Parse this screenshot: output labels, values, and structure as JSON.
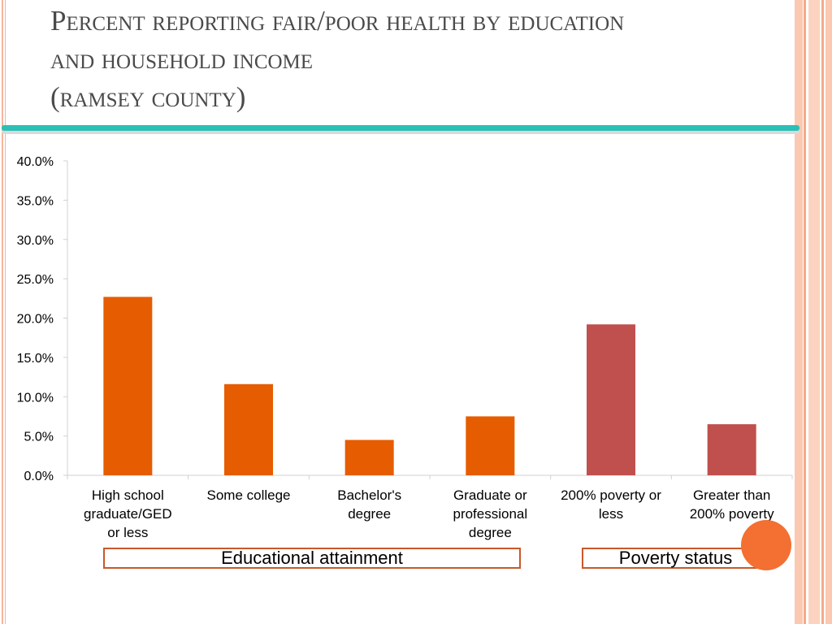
{
  "slide": {
    "title_lines": [
      "Percent reporting fair/poor health by education",
      "and household income",
      "(ramsey county)"
    ],
    "colors": {
      "education_bar": "#e65c00",
      "poverty_bar": "#c0504d",
      "accent_rule": "#2bbfb5",
      "accent_circle": "#f36f32",
      "group_box_border": "#c8582a"
    }
  },
  "groups": [
    {
      "label": "Educational attainment"
    },
    {
      "label": "Poverty status"
    }
  ],
  "chart_data": {
    "type": "bar",
    "ylim": [
      0,
      40
    ],
    "yticks": [
      "0.0%",
      "5.0%",
      "10.0%",
      "15.0%",
      "20.0%",
      "25.0%",
      "30.0%",
      "35.0%",
      "40.0%"
    ],
    "grid": false,
    "categories": [
      [
        "High school",
        "graduate/GED",
        "or less"
      ],
      [
        "Some college"
      ],
      [
        "Bachelor's",
        "degree"
      ],
      [
        "Graduate or",
        "professional",
        "degree"
      ],
      [
        "200% poverty or",
        "less"
      ],
      [
        "Greater than",
        "200% poverty"
      ]
    ],
    "values": [
      22.7,
      11.6,
      4.5,
      7.5,
      19.2,
      6.5
    ],
    "bar_groups": [
      "education",
      "education",
      "education",
      "education",
      "poverty",
      "poverty"
    ]
  }
}
